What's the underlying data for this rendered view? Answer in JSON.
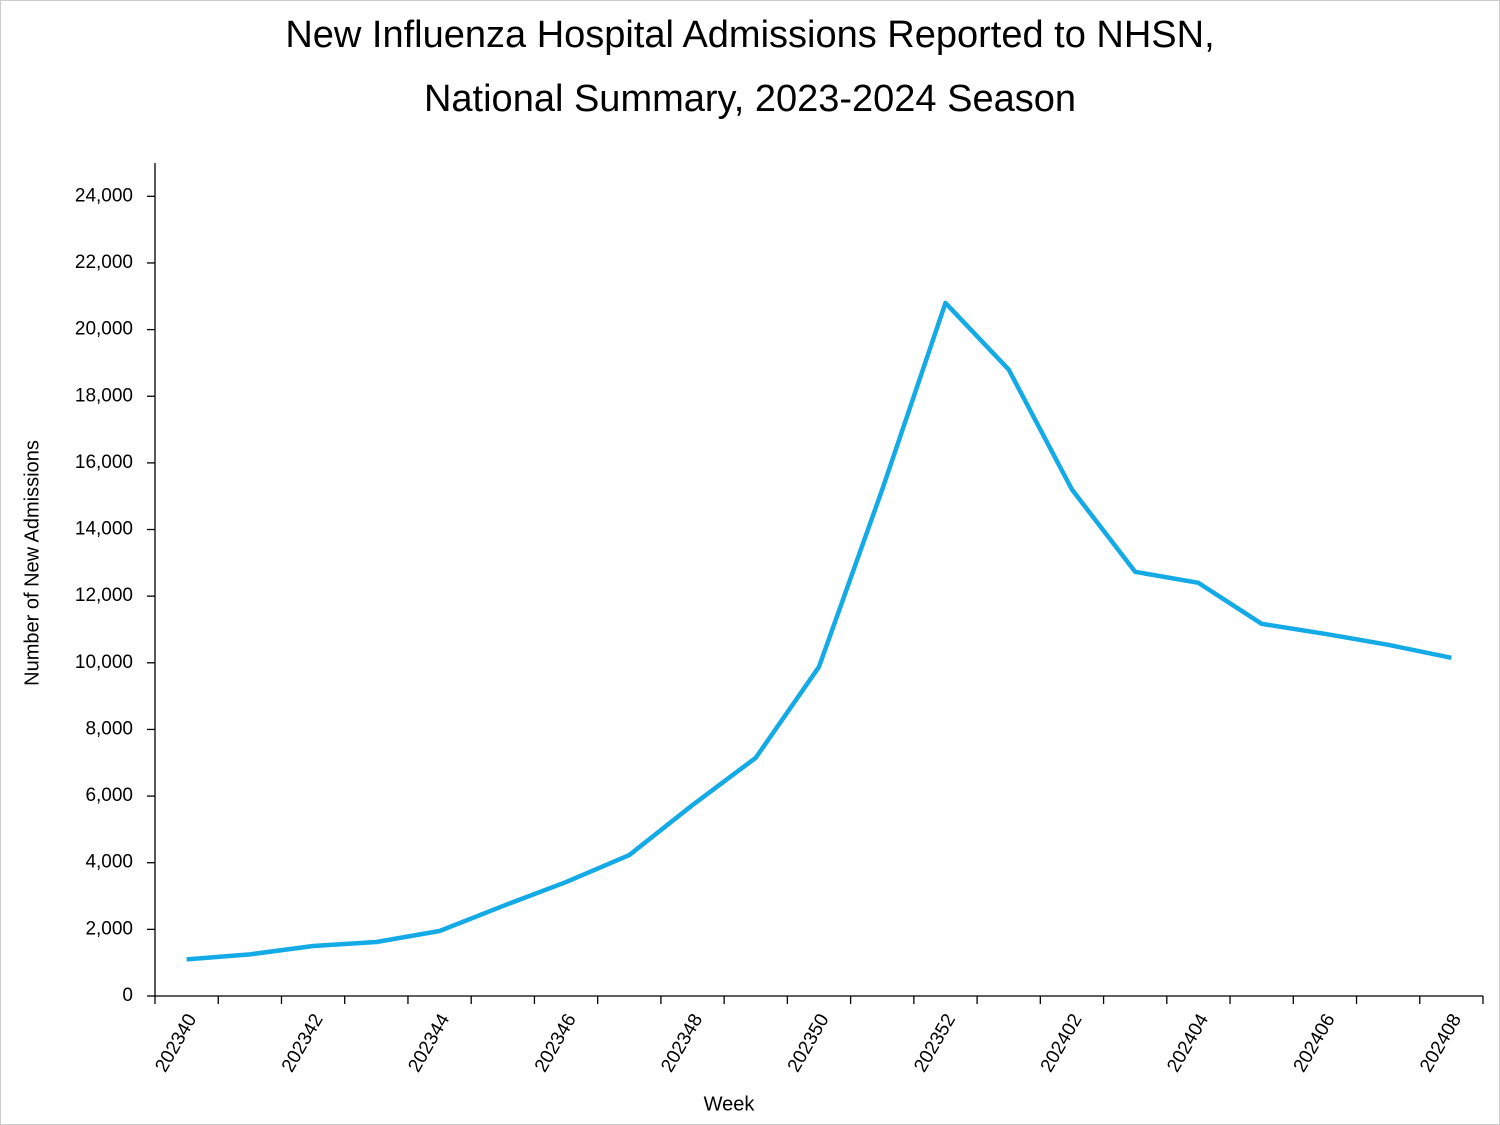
{
  "chart_data": {
    "type": "line",
    "title": [
      "New Influenza Hospital Admissions Reported to NHSN,",
      "National Summary, 2023-2024 Season"
    ],
    "x_label": "Week",
    "y_label": "Number of New Admissions",
    "categories": [
      "202340",
      null,
      "202342",
      null,
      "202344",
      null,
      "202346",
      null,
      "202348",
      null,
      "202350",
      null,
      "202352",
      null,
      "202402",
      null,
      "202404",
      null,
      "202406",
      null,
      "202408"
    ],
    "series": [
      {
        "name": "New Admissions",
        "color": "#13aae6",
        "values": [
          1100,
          1250,
          1500,
          1620,
          1950,
          2700,
          3420,
          4230,
          5730,
          7150,
          9880,
          15200,
          20800,
          18800,
          15200,
          12730,
          12400,
          11170,
          10870,
          10540,
          10150
        ]
      }
    ],
    "ylim": [
      0,
      25000
    ],
    "yticks": [
      0,
      {
        "value": 2000,
        "label": "2,000"
      },
      {
        "value": 4000,
        "label": "4,000"
      },
      {
        "value": 6000,
        "label": "6,000"
      },
      {
        "value": 8000,
        "label": "8,000"
      },
      {
        "value": 10000,
        "label": "10,000"
      },
      {
        "value": 12000,
        "label": "12,000"
      },
      {
        "value": 14000,
        "label": "14,000"
      },
      {
        "value": 16000,
        "label": "16,000"
      },
      {
        "value": 18000,
        "label": "18,000"
      },
      {
        "value": 20000,
        "label": "20,000"
      },
      {
        "value": 22000,
        "label": "22,000"
      },
      {
        "value": 24000,
        "label": "24,000"
      }
    ],
    "grid": false
  }
}
